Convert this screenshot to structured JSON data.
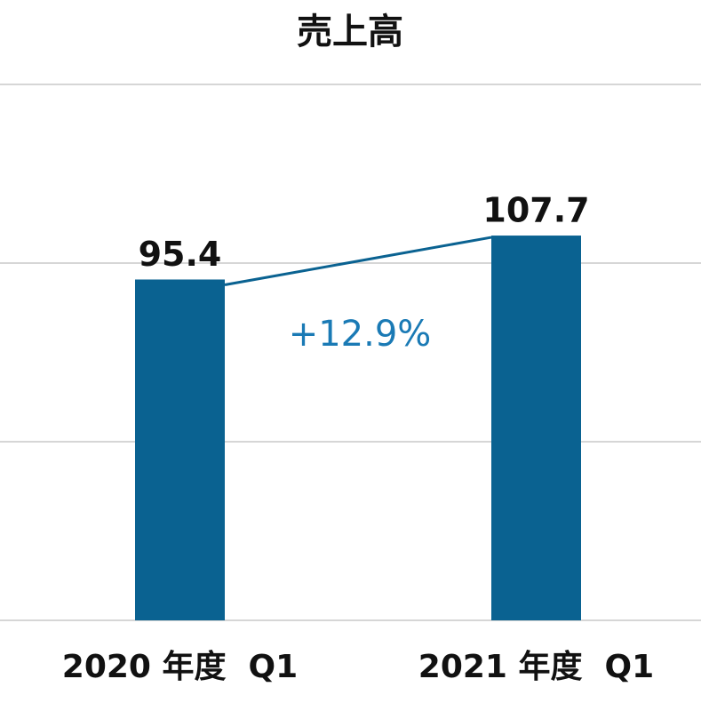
{
  "chart_data": {
    "type": "bar",
    "title": "売上高",
    "categories": [
      "2020 年度  Q1",
      "2021 年度  Q1"
    ],
    "values": [
      95.4,
      107.7
    ],
    "color": "#0a6291",
    "ylim": [
      0,
      150
    ],
    "yticks": [
      0,
      50,
      100,
      150
    ],
    "grid": true,
    "annotation": "+12.9%",
    "annotation_color": "#1a7ab5"
  }
}
